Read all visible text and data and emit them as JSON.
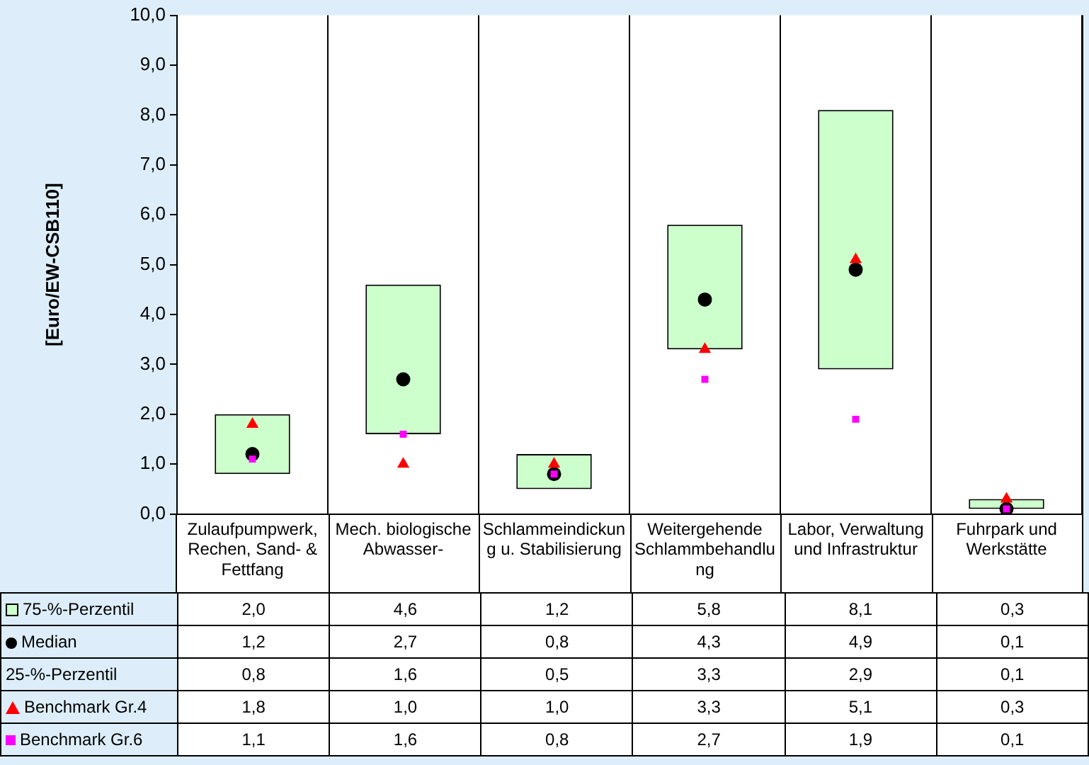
{
  "chart_data": {
    "type": "bar",
    "ylabel": "[Euro/EW-CSB110]",
    "categories": [
      "Zulaufpumpwerk, Rechen, Sand- & Fettfang",
      "Mech. biologische Abwasser-",
      "Schlammeindickung u. Stabilisierung",
      "Weitergehende Schlammbehandlung",
      "Labor, Verwaltung und Infrastruktur",
      "Fuhrpark und Werkstätte"
    ],
    "ylim": [
      0,
      10
    ],
    "yticks": [
      {
        "value": 0,
        "label": "0,0"
      },
      {
        "value": 1,
        "label": "1,0"
      },
      {
        "value": 2,
        "label": "2,0"
      },
      {
        "value": 3,
        "label": "3,0"
      },
      {
        "value": 4,
        "label": "4,0"
      },
      {
        "value": 5,
        "label": "5,0"
      },
      {
        "value": 6,
        "label": "6,0"
      },
      {
        "value": 7,
        "label": "7,0"
      },
      {
        "value": 8,
        "label": "8,0"
      },
      {
        "value": 9,
        "label": "9,0"
      },
      {
        "value": 10,
        "label": "10,0"
      }
    ],
    "grid": "x",
    "legend": "bottom",
    "annotations": [
      "25-%-Perzentil",
      "0,8",
      "1,6",
      "0,5",
      "3,3",
      "2,9",
      "0,1"
    ],
    "series": [
      {
        "name": "75-%-Perzentil",
        "color": "#ccffcc",
        "base": [
          0.8,
          1.6,
          0.5,
          3.3,
          2.9,
          0.1
        ],
        "values": [
          1.2,
          3.0,
          0.7,
          2.5,
          5.2,
          0.2
        ],
        "value_labels": [
          "2,0",
          "4,6",
          "1,2",
          "5,8",
          "8,1",
          "0,3"
        ]
      },
      {
        "name": "Median",
        "type": "scatter",
        "marker": "circle",
        "color": "#000000",
        "values": [
          1.2,
          2.7,
          0.8,
          4.3,
          4.9,
          0.1
        ],
        "value_labels": [
          "1,2",
          "2,7",
          "0,8",
          "4,3",
          "4,9",
          "0,1"
        ]
      },
      {
        "name": "Benchmark Gr.4",
        "type": "scatter",
        "marker": "triangle",
        "color": "#ff0000",
        "values": [
          1.8,
          1.0,
          1.0,
          3.3,
          5.1,
          0.3
        ],
        "value_labels": [
          "1,8",
          "1,0",
          "1,0",
          "3,3",
          "5,1",
          "0,3"
        ]
      },
      {
        "name": "Benchmark Gr.6",
        "type": "scatter",
        "marker": "square",
        "color": "#ff00ff",
        "values": [
          1.1,
          1.6,
          0.8,
          2.7,
          1.9,
          0.1
        ],
        "value_labels": [
          "1,1",
          "1,6",
          "0,8",
          "2,7",
          "1,9",
          "0,1"
        ]
      }
    ]
  }
}
